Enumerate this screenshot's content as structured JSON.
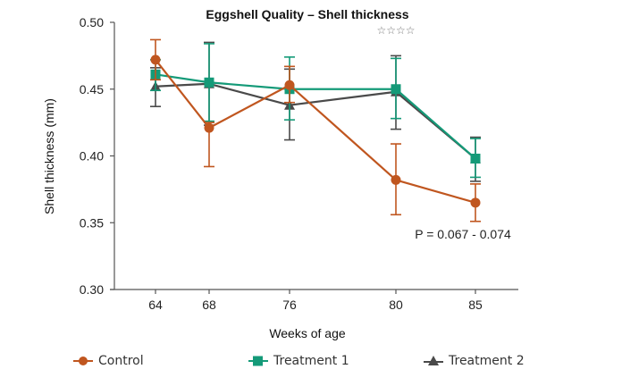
{
  "chart_data": {
    "type": "line",
    "title": "Eggshell Quality – Shell thickness",
    "significance_marker": "☆☆☆☆",
    "xlabel": "Weeks of age",
    "ylabel": "Shell thickness (mm)",
    "categories": [
      "64",
      "68",
      "76",
      "80",
      "85"
    ],
    "ylim": [
      0.3,
      0.5
    ],
    "yticks": [
      "0.30",
      "0.35",
      "0.40",
      "0.45",
      "0.50"
    ],
    "grid": false,
    "annotation": "P = 0.067 - 0.074",
    "legend_position": "bottom",
    "series": [
      {
        "name": "Control",
        "color": "#c0561f",
        "marker": "circle",
        "values": [
          0.472,
          0.421,
          0.453,
          0.382,
          0.365
        ],
        "err_upper": [
          0.487,
          0.425,
          0.467,
          0.409,
          0.379
        ],
        "err_lower": [
          0.457,
          0.392,
          0.44,
          0.356,
          0.351
        ]
      },
      {
        "name": "Treatment 1",
        "color": "#149a78",
        "marker": "square",
        "values": [
          0.461,
          0.455,
          0.45,
          0.45,
          0.398
        ],
        "err_upper": [
          0.472,
          0.484,
          0.474,
          0.473,
          0.413
        ],
        "err_lower": [
          0.449,
          0.426,
          0.427,
          0.428,
          0.384
        ]
      },
      {
        "name": "Treatment 2",
        "color": "#4a4a4a",
        "marker": "triangle",
        "values": [
          0.452,
          0.454,
          0.438,
          0.448,
          0.398
        ],
        "err_upper": [
          0.466,
          0.485,
          0.465,
          0.475,
          0.414
        ],
        "err_lower": [
          0.437,
          0.423,
          0.412,
          0.42,
          0.381
        ]
      }
    ]
  }
}
